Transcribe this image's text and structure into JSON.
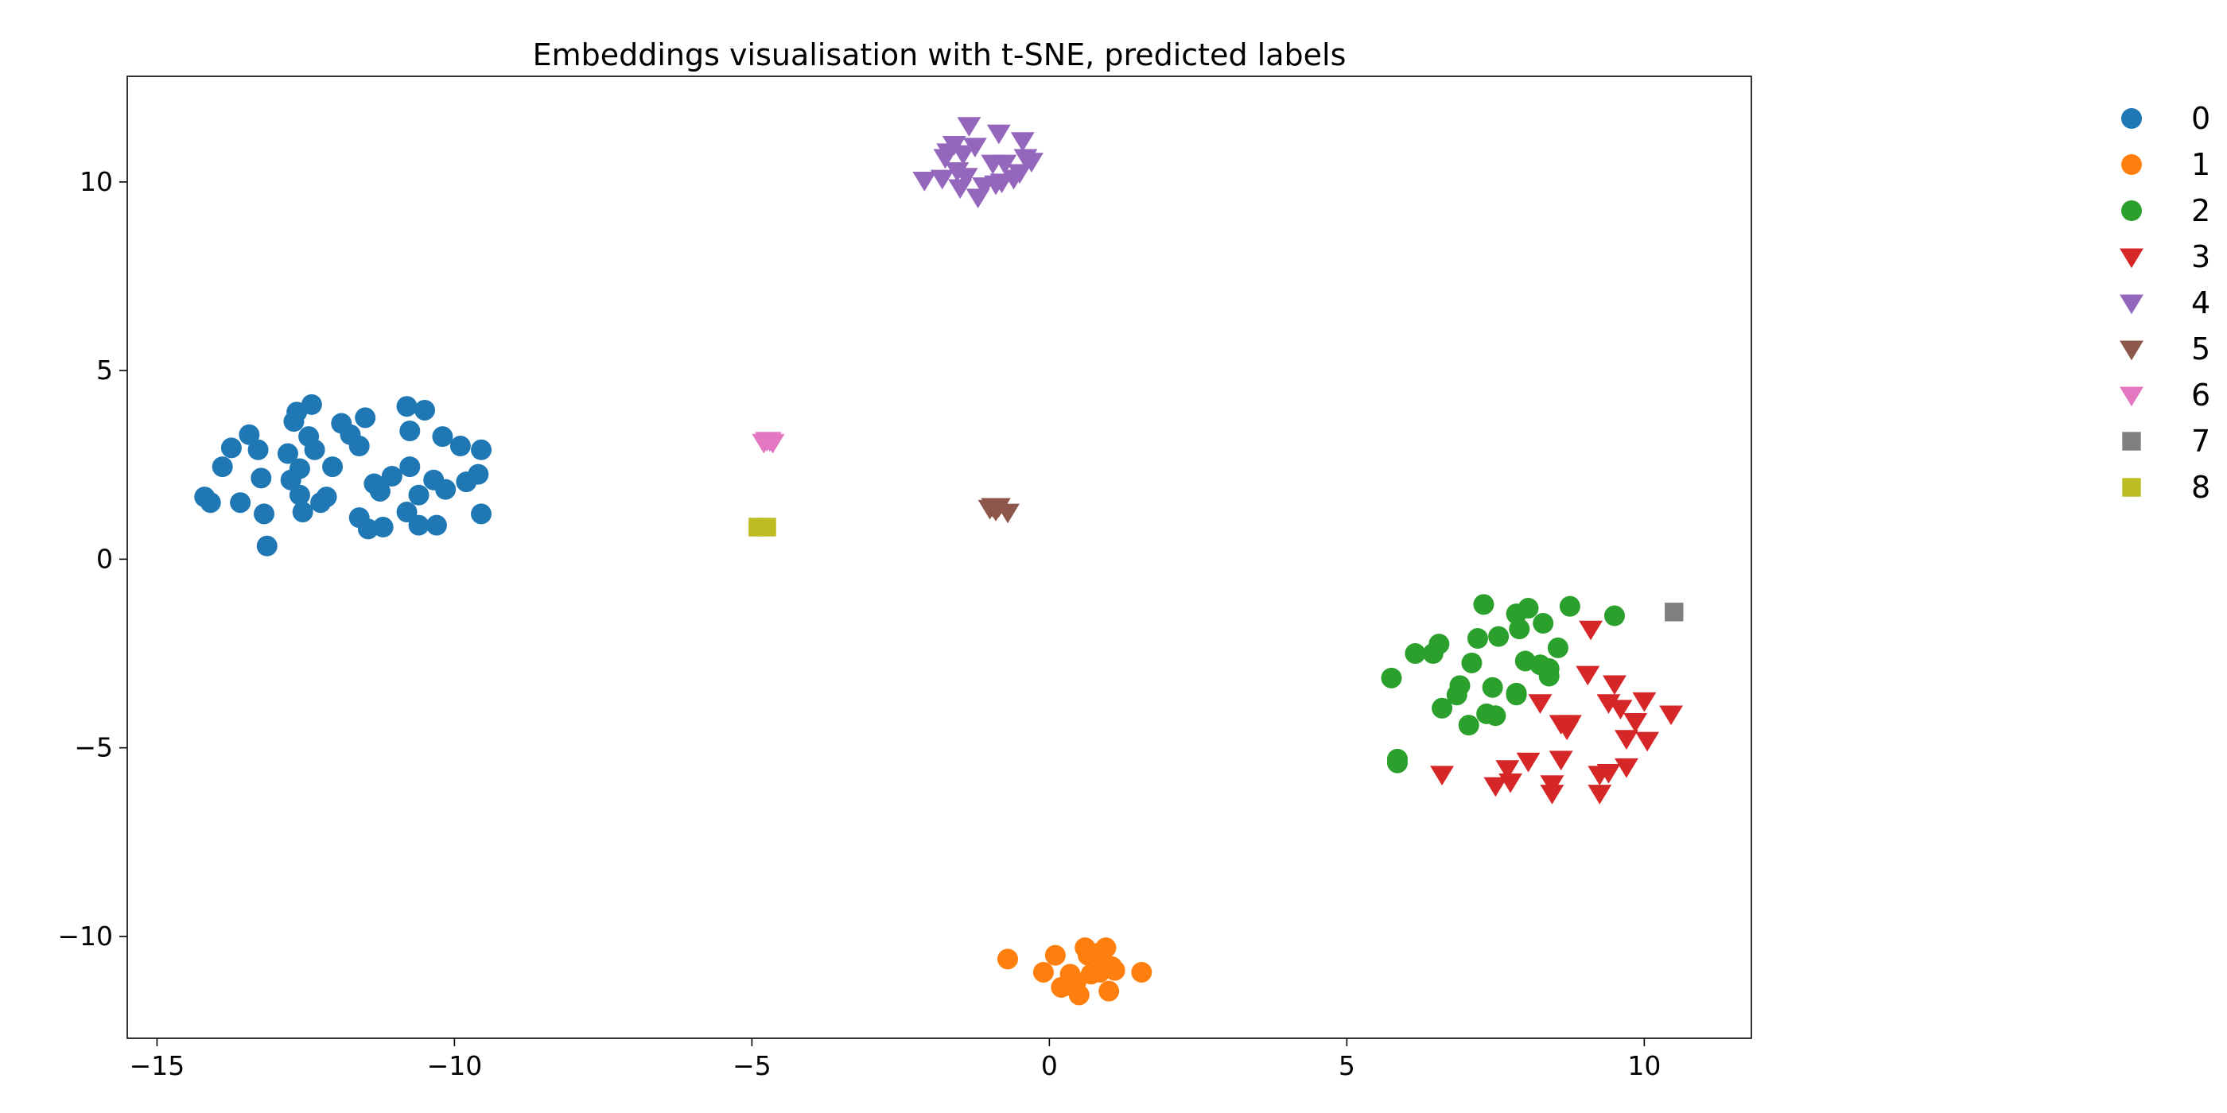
{
  "chart_data": {
    "type": "scatter",
    "title": "Embeddings visualisation with t-SNE, predicted labels",
    "xlabel": "",
    "ylabel": "",
    "xlim": [
      -15.5,
      11.8
    ],
    "ylim": [
      -12.7,
      12.8
    ],
    "xticks": [
      -15,
      -10,
      -5,
      0,
      5,
      10
    ],
    "yticks": [
      -10,
      -5,
      0,
      5,
      10
    ],
    "xtick_labels": [
      "−15",
      "−10",
      "−5",
      "0",
      "5",
      "10"
    ],
    "ytick_labels": [
      "−10",
      "−5",
      "0",
      "5",
      "10"
    ],
    "grid": false,
    "legend_position": "right, outside plot",
    "series": [
      {
        "name": "0",
        "color": "#1f77b4",
        "marker": "circle",
        "points": [
          [
            -14.2,
            1.65
          ],
          [
            -14.1,
            1.5
          ],
          [
            -13.9,
            2.45
          ],
          [
            -13.75,
            2.95
          ],
          [
            -13.6,
            1.5
          ],
          [
            -13.45,
            3.3
          ],
          [
            -13.3,
            2.9
          ],
          [
            -13.25,
            2.15
          ],
          [
            -13.2,
            1.2
          ],
          [
            -13.15,
            0.35
          ],
          [
            -12.8,
            2.8
          ],
          [
            -12.75,
            2.1
          ],
          [
            -12.7,
            3.65
          ],
          [
            -12.65,
            3.9
          ],
          [
            -12.6,
            2.4
          ],
          [
            -12.6,
            1.7
          ],
          [
            -12.55,
            1.25
          ],
          [
            -12.45,
            3.25
          ],
          [
            -12.4,
            4.1
          ],
          [
            -12.35,
            2.9
          ],
          [
            -12.25,
            1.5
          ],
          [
            -12.15,
            1.65
          ],
          [
            -12.05,
            2.45
          ],
          [
            -11.9,
            3.6
          ],
          [
            -11.75,
            3.3
          ],
          [
            -11.6,
            3.0
          ],
          [
            -11.6,
            1.1
          ],
          [
            -11.5,
            3.75
          ],
          [
            -11.45,
            0.8
          ],
          [
            -11.35,
            2.0
          ],
          [
            -11.25,
            1.8
          ],
          [
            -11.2,
            0.85
          ],
          [
            -11.05,
            2.2
          ],
          [
            -10.8,
            4.05
          ],
          [
            -10.8,
            1.25
          ],
          [
            -10.75,
            3.4
          ],
          [
            -10.75,
            2.45
          ],
          [
            -10.6,
            1.7
          ],
          [
            -10.6,
            0.9
          ],
          [
            -10.5,
            3.95
          ],
          [
            -10.35,
            2.1
          ],
          [
            -10.3,
            0.9
          ],
          [
            -10.2,
            3.25
          ],
          [
            -10.15,
            1.85
          ],
          [
            -9.9,
            3.0
          ],
          [
            -9.8,
            2.05
          ],
          [
            -9.6,
            2.25
          ],
          [
            -9.55,
            2.9
          ],
          [
            -9.55,
            1.2
          ]
        ]
      },
      {
        "name": "1",
        "color": "#ff7f0e",
        "marker": "circle",
        "points": [
          [
            -0.7,
            -10.6
          ],
          [
            0.1,
            -10.5
          ],
          [
            -0.1,
            -10.95
          ],
          [
            0.2,
            -11.35
          ],
          [
            0.35,
            -11.0
          ],
          [
            0.45,
            -11.2
          ],
          [
            0.5,
            -11.55
          ],
          [
            0.6,
            -10.3
          ],
          [
            0.65,
            -10.5
          ],
          [
            0.8,
            -10.45
          ],
          [
            0.85,
            -10.95
          ],
          [
            0.95,
            -10.3
          ],
          [
            1.0,
            -11.45
          ],
          [
            1.05,
            -10.8
          ],
          [
            1.1,
            -10.9
          ],
          [
            1.55,
            -10.95
          ],
          [
            0.7,
            -11.0
          ],
          [
            0.3,
            -11.3
          ]
        ]
      },
      {
        "name": "2",
        "color": "#2ca02c",
        "marker": "circle",
        "points": [
          [
            5.75,
            -3.15
          ],
          [
            5.85,
            -5.3
          ],
          [
            5.85,
            -5.4
          ],
          [
            6.15,
            -2.5
          ],
          [
            6.45,
            -2.5
          ],
          [
            6.55,
            -2.25
          ],
          [
            6.6,
            -3.95
          ],
          [
            6.85,
            -3.6
          ],
          [
            6.9,
            -3.35
          ],
          [
            7.05,
            -4.4
          ],
          [
            7.1,
            -2.75
          ],
          [
            7.2,
            -2.1
          ],
          [
            7.3,
            -1.2
          ],
          [
            7.35,
            -4.1
          ],
          [
            7.45,
            -3.4
          ],
          [
            7.5,
            -4.15
          ],
          [
            7.55,
            -2.05
          ],
          [
            7.85,
            -3.55
          ],
          [
            7.85,
            -3.6
          ],
          [
            7.85,
            -1.45
          ],
          [
            7.9,
            -1.85
          ],
          [
            8.0,
            -2.7
          ],
          [
            8.05,
            -1.3
          ],
          [
            8.25,
            -2.8
          ],
          [
            8.3,
            -1.7
          ],
          [
            8.4,
            -2.9
          ],
          [
            8.4,
            -3.1
          ],
          [
            8.55,
            -2.35
          ],
          [
            8.75,
            -1.25
          ],
          [
            9.5,
            -1.5
          ]
        ]
      },
      {
        "name": "3",
        "color": "#d62728",
        "marker": "triangle-down",
        "points": [
          [
            6.6,
            -5.7
          ],
          [
            7.5,
            -6.0
          ],
          [
            7.7,
            -5.55
          ],
          [
            7.75,
            -5.9
          ],
          [
            8.05,
            -5.35
          ],
          [
            8.25,
            -3.8
          ],
          [
            8.45,
            -5.95
          ],
          [
            8.45,
            -6.2
          ],
          [
            8.6,
            -5.3
          ],
          [
            8.6,
            -4.35
          ],
          [
            8.7,
            -4.5
          ],
          [
            8.75,
            -4.35
          ],
          [
            9.05,
            -3.05
          ],
          [
            9.1,
            -1.85
          ],
          [
            9.25,
            -5.7
          ],
          [
            9.25,
            -6.2
          ],
          [
            9.4,
            -5.65
          ],
          [
            9.4,
            -3.8
          ],
          [
            9.5,
            -3.3
          ],
          [
            9.6,
            -3.95
          ],
          [
            9.7,
            -5.5
          ],
          [
            9.7,
            -4.75
          ],
          [
            9.85,
            -4.3
          ],
          [
            10.0,
            -3.75
          ],
          [
            10.05,
            -4.8
          ],
          [
            10.45,
            -4.1
          ]
        ]
      },
      {
        "name": "4",
        "color": "#9467bd",
        "marker": "triangle-down",
        "points": [
          [
            -2.1,
            10.05
          ],
          [
            -1.8,
            10.1
          ],
          [
            -1.75,
            10.65
          ],
          [
            -1.7,
            10.8
          ],
          [
            -1.6,
            11.0
          ],
          [
            -1.55,
            10.3
          ],
          [
            -1.5,
            9.85
          ],
          [
            -1.45,
            10.75
          ],
          [
            -1.4,
            10.15
          ],
          [
            -1.35,
            11.5
          ],
          [
            -1.25,
            10.95
          ],
          [
            -1.2,
            9.6
          ],
          [
            -1.1,
            9.9
          ],
          [
            -0.95,
            10.5
          ],
          [
            -0.85,
            11.3
          ],
          [
            -0.8,
            10.0
          ],
          [
            -0.75,
            10.5
          ],
          [
            -0.6,
            10.1
          ],
          [
            -0.5,
            10.25
          ],
          [
            -0.45,
            11.1
          ],
          [
            -0.4,
            10.65
          ],
          [
            -0.3,
            10.55
          ],
          [
            -0.9,
            9.95
          ]
        ]
      },
      {
        "name": "5",
        "color": "#8c564b",
        "marker": "triangle-down",
        "points": [
          [
            -1.0,
            1.35
          ],
          [
            -0.9,
            1.3
          ],
          [
            -0.85,
            1.4
          ],
          [
            -0.7,
            1.25
          ],
          [
            -0.95,
            1.4
          ]
        ]
      },
      {
        "name": "6",
        "color": "#e377c2",
        "marker": "triangle-down",
        "points": [
          [
            -4.8,
            3.1
          ],
          [
            -4.75,
            3.15
          ],
          [
            -4.7,
            3.15
          ],
          [
            -4.65,
            3.1
          ]
        ]
      },
      {
        "name": "7",
        "color": "#7f7f7f",
        "marker": "square",
        "points": [
          [
            10.5,
            -1.4
          ]
        ]
      },
      {
        "name": "8",
        "color": "#bcbd22",
        "marker": "square",
        "points": [
          [
            -4.9,
            0.85
          ],
          [
            -4.75,
            0.85
          ]
        ]
      }
    ]
  }
}
